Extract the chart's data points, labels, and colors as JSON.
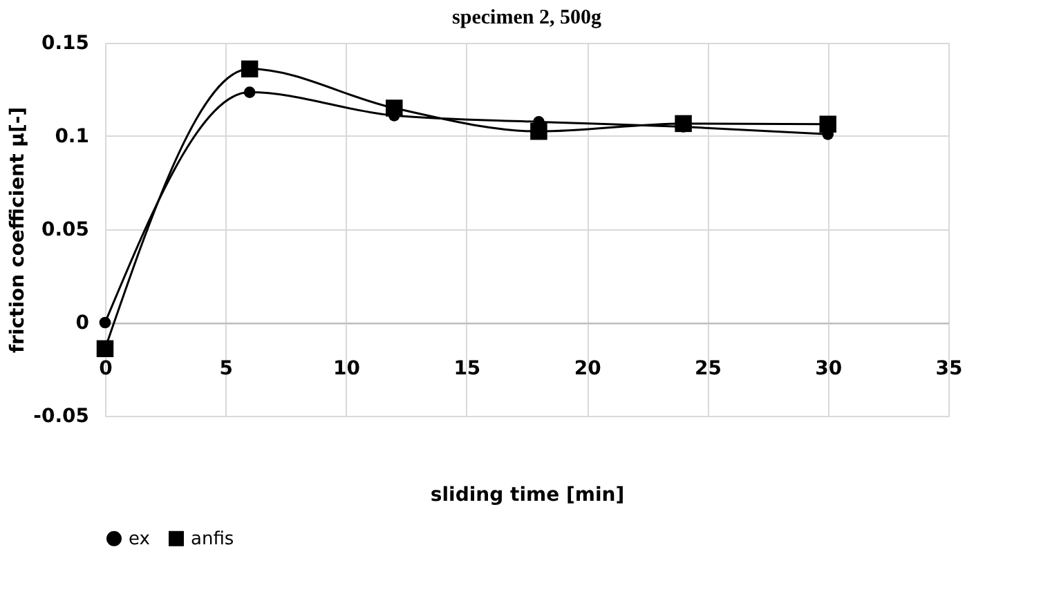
{
  "chart_data": {
    "type": "line",
    "title": "specimen 2, 500g",
    "xlabel": "sliding time [min]",
    "ylabel": "friction coefficient μ[-]",
    "x": [
      0,
      6,
      12,
      18,
      24,
      30
    ],
    "series": [
      {
        "name": "ex",
        "color": "#000000",
        "marker": "circle",
        "values": [
          0,
          0.1235,
          0.111,
          0.1076,
          0.105,
          0.101
        ]
      },
      {
        "name": "anfis",
        "color": "#000000",
        "marker": "square",
        "values": [
          -0.014,
          0.136,
          0.115,
          0.1025,
          0.1067,
          0.1064
        ]
      }
    ],
    "xlim": [
      0,
      35
    ],
    "xticks": [
      0,
      5,
      10,
      15,
      20,
      25,
      30,
      35
    ],
    "ylim": [
      -0.05,
      0.15
    ],
    "yticks": [
      -0.05,
      0,
      0.05,
      0.1,
      0.15
    ],
    "grid": true,
    "legend": "bottom",
    "line_style": "solid"
  }
}
